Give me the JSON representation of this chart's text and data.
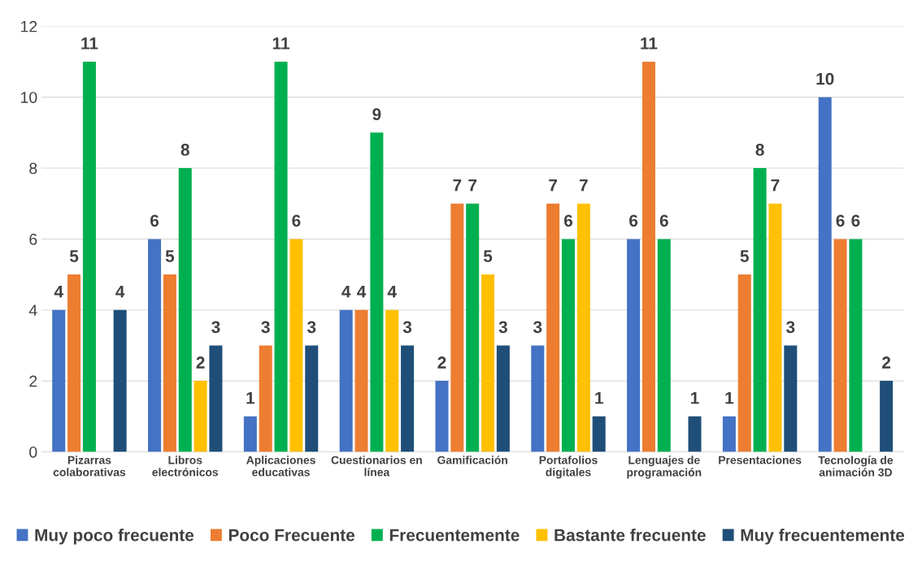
{
  "chart_data": {
    "type": "bar",
    "categories": [
      "Pizarras\ncolaborativas",
      "Libros\nelectrónicos",
      "Aplicaciones\neducativas",
      "Cuestionarios en\nlínea",
      "Gamificación",
      "Portafolios\ndigitales",
      "Lenguajes de\nprogramación",
      "Presentaciones",
      "Tecnología de\nanimación 3D"
    ],
    "series": [
      {
        "name": "Muy poco frecuente",
        "color": "#4472c4",
        "values": [
          4,
          6,
          1,
          4,
          2,
          3,
          6,
          1,
          10
        ]
      },
      {
        "name": "Poco Frecuente",
        "color": "#ed7d31",
        "values": [
          5,
          5,
          3,
          4,
          7,
          7,
          11,
          5,
          6
        ]
      },
      {
        "name": "Frecuentemente",
        "color": "#00b050",
        "values": [
          11,
          8,
          11,
          9,
          7,
          6,
          6,
          8,
          6
        ]
      },
      {
        "name": "Bastante frecuente",
        "color": "#ffc000",
        "values": [
          null,
          2,
          6,
          4,
          5,
          7,
          null,
          7,
          null
        ]
      },
      {
        "name": "Muy frecuentemente",
        "color": "#1f4e79",
        "values": [
          4,
          3,
          3,
          3,
          3,
          1,
          1,
          3,
          2
        ]
      }
    ],
    "ylim": [
      0,
      12
    ],
    "yticks": [
      0,
      2,
      4,
      6,
      8,
      10,
      12
    ],
    "grid": "y",
    "legend": "bottom",
    "data_labels": true
  }
}
